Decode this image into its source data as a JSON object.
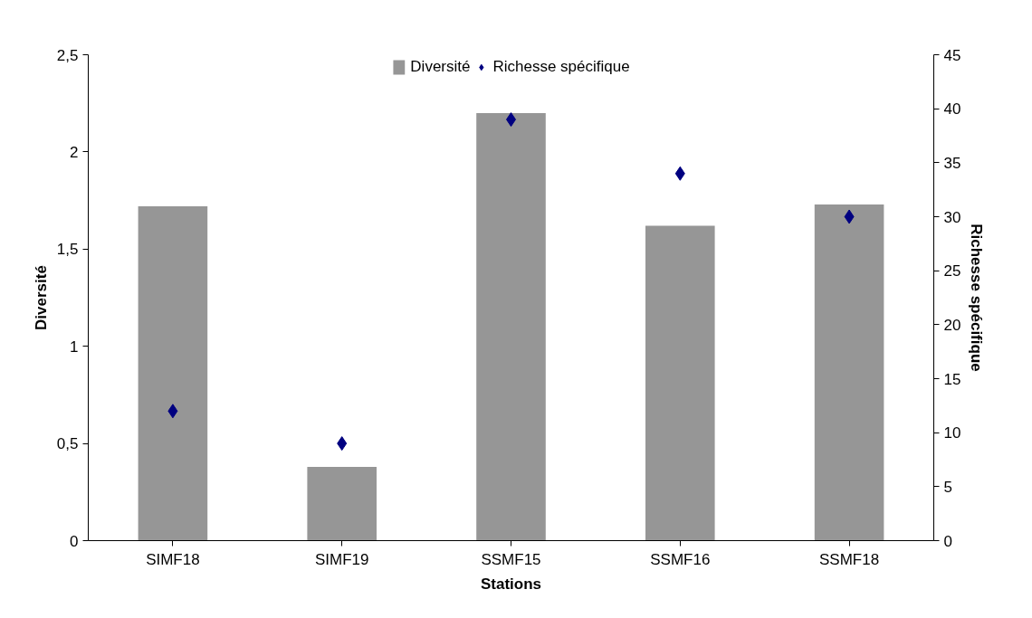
{
  "chart_data": {
    "type": "bar",
    "categories": [
      "SIMF18",
      "SIMF19",
      "SSMF15",
      "SSMF16",
      "SSMF18"
    ],
    "xlabel": "Stations",
    "ylabel": "Diversité",
    "y2label": "Richesse spécifique",
    "ylim": [
      0,
      2.5
    ],
    "yticks": [
      0,
      {
        "value": 0.5,
        "label": "0,5"
      },
      1,
      {
        "value": 1.5,
        "label": "1,5"
      },
      2,
      {
        "value": 2.5,
        "label": "2,5"
      }
    ],
    "y2lim": [
      0,
      45
    ],
    "y2ticks": [
      0,
      5,
      10,
      15,
      20,
      25,
      30,
      35,
      40,
      45
    ],
    "series": [
      {
        "name": "Diversité",
        "color": "#969696",
        "values": [
          1.72,
          0.38,
          2.2,
          1.62,
          1.73
        ]
      },
      {
        "name": "Richesse spécifique",
        "type": "scatter",
        "axis": "y2",
        "marker": "diamond",
        "color": "#000080",
        "values": [
          12,
          9,
          39,
          34,
          30
        ]
      }
    ],
    "grid": false,
    "legend": "top"
  }
}
